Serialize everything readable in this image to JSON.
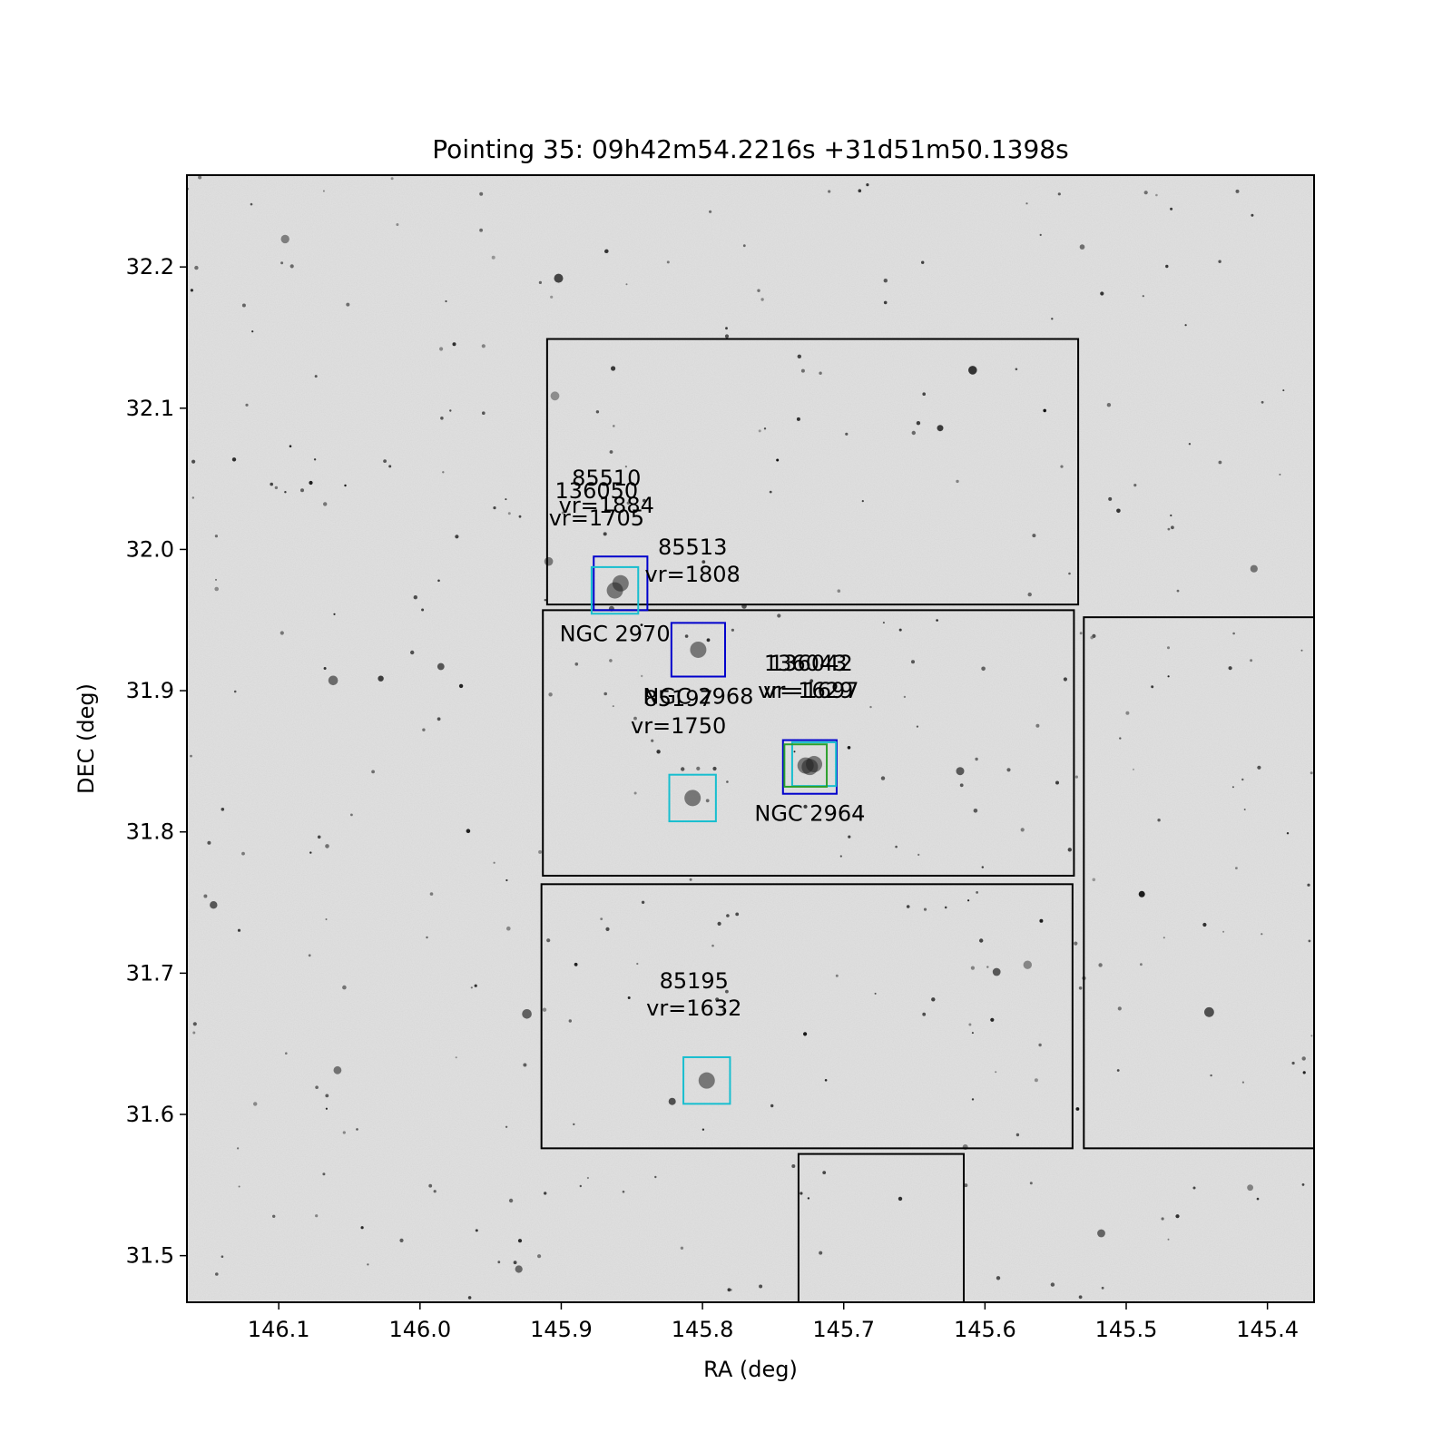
{
  "chart_data": {
    "type": "scatter",
    "title": "Pointing 35: 09h42m54.2216s +31d51m50.1398s",
    "xlabel": "RA (deg)",
    "ylabel": "DEC (deg)",
    "xlim": [
      146.165,
      145.367
    ],
    "ylim": [
      31.467,
      32.265
    ],
    "x_reversed": true,
    "grid": false,
    "xticks": [
      146.1,
      146.0,
      145.9,
      145.8,
      145.7,
      145.6,
      145.5,
      145.4
    ],
    "xtick_labels": [
      "146.1",
      "146.0",
      "145.9",
      "145.8",
      "145.7",
      "145.6",
      "145.5",
      "145.4"
    ],
    "yticks": [
      31.5,
      31.6,
      31.7,
      31.8,
      31.9,
      32.0,
      32.1,
      32.2
    ],
    "ytick_labels": [
      "31.5",
      "31.6",
      "31.7",
      "31.8",
      "31.9",
      "32.0",
      "32.1",
      "32.2"
    ],
    "background": "grayscale sky survey image with scattered stars",
    "footprints": [
      {
        "ra": [
          145.534,
          145.91
        ],
        "dec": [
          31.961,
          32.149
        ],
        "color": "#000000"
      },
      {
        "ra": [
          145.537,
          145.913
        ],
        "dec": [
          31.769,
          31.957
        ],
        "color": "#000000"
      },
      {
        "ra": [
          145.538,
          145.914
        ],
        "dec": [
          31.576,
          31.763
        ],
        "color": "#000000"
      },
      {
        "ra": [
          145.342,
          145.53
        ],
        "dec": [
          31.576,
          31.952
        ],
        "color": "#000000"
      },
      {
        "ra": [
          145.615,
          145.732
        ],
        "dec": [
          31.467,
          31.572
        ],
        "color": "#000000"
      }
    ],
    "galaxies": [
      {
        "id": "85510",
        "vr": "vr=1884",
        "ra": 145.858,
        "dec": 31.976,
        "size": 0.038,
        "color": "#0000cc",
        "name": "",
        "label_ra": 145.868,
        "label_dec": 32.026
      },
      {
        "id": "136050",
        "vr": "vr=1705",
        "ra": 145.862,
        "dec": 31.971,
        "size": 0.033,
        "color": "#17becf",
        "name": "NGC 2970",
        "label_ra": 145.875,
        "label_dec": 32.017
      },
      {
        "id": "85513",
        "vr": "vr=1808",
        "ra": 145.803,
        "dec": 31.929,
        "size": 0.038,
        "color": "#0000cc",
        "name": "NGC 2968",
        "label_ra": 145.807,
        "label_dec": 31.977
      },
      {
        "id": "136043",
        "vr": "vr=1629",
        "ra": 145.724,
        "dec": 31.846,
        "size": 0.038,
        "color": "#0000cc",
        "name": "NGC 2964",
        "label_ra": 145.727,
        "label_dec": 31.895
      },
      {
        "id": "136042",
        "vr": "vr=1697",
        "ra": 145.721,
        "dec": 31.848,
        "size": 0.031,
        "color": "#17becf",
        "name": "",
        "label_ra": 145.723,
        "label_dec": 31.895
      },
      {
        "id": "",
        "vr": "",
        "ra": 145.727,
        "dec": 31.847,
        "size": 0.03,
        "color": "#2ca02c",
        "name": "",
        "label_ra": 0,
        "label_dec": 0
      },
      {
        "id": "85197",
        "vr": "vr=1750",
        "ra": 145.807,
        "dec": 31.824,
        "size": 0.033,
        "color": "#17becf",
        "name": "",
        "label_ra": 145.817,
        "label_dec": 31.87
      },
      {
        "id": "85195",
        "vr": "vr=1632",
        "ra": 145.797,
        "dec": 31.624,
        "size": 0.033,
        "color": "#17becf",
        "name": "",
        "label_ra": 145.806,
        "label_dec": 31.67
      }
    ]
  }
}
